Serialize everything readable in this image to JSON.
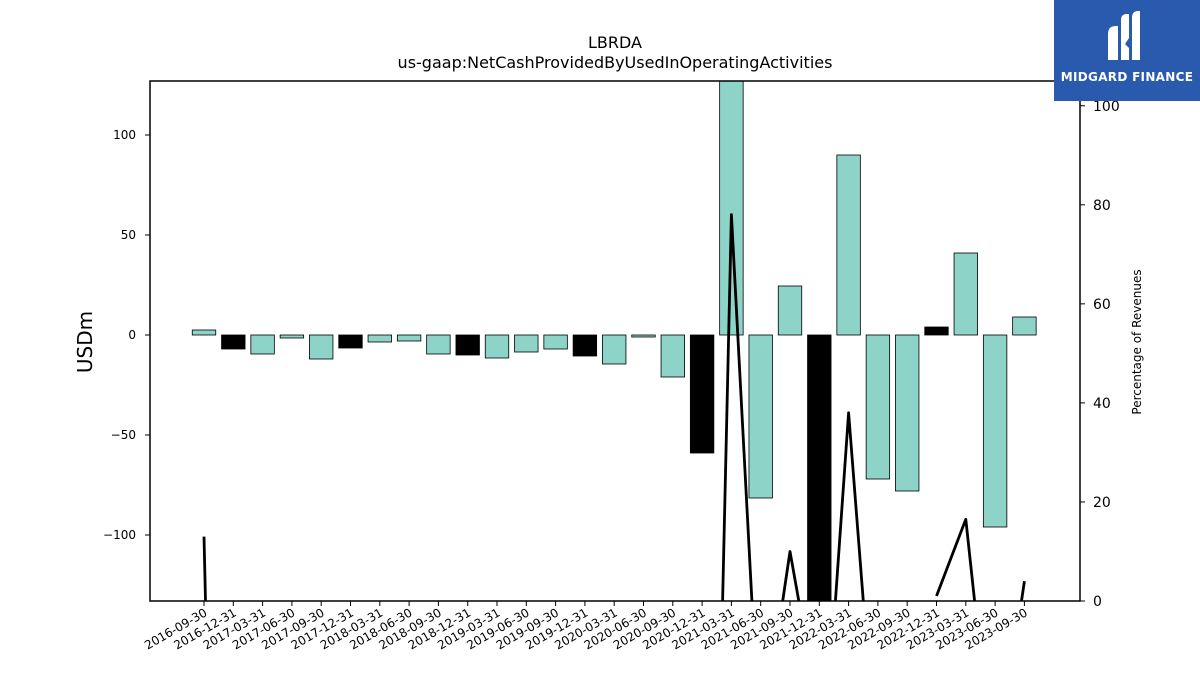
{
  "chart_data": {
    "type": "bar",
    "title": "LBRDA",
    "subtitle": "us-gaap:NetCashProvidedByUsedInOperatingActivities",
    "ylabel": "USDm",
    "y2label": "Percentage of Revenues",
    "ylim": [
      -133,
      127
    ],
    "y2lim": [
      0,
      105
    ],
    "yticks": [
      -100,
      -50,
      0,
      50,
      100
    ],
    "y2ticks": [
      0,
      20,
      40,
      60,
      80,
      100
    ],
    "categories": [
      "2016-09-30",
      "2016-12-31",
      "2017-03-31",
      "2017-06-30",
      "2017-09-30",
      "2017-12-31",
      "2018-03-31",
      "2018-06-30",
      "2018-09-30",
      "2018-12-31",
      "2019-03-31",
      "2019-06-30",
      "2019-09-30",
      "2019-12-31",
      "2020-03-31",
      "2020-06-30",
      "2020-09-30",
      "2020-12-31",
      "2021-03-31",
      "2021-06-30",
      "2021-09-30",
      "2021-12-31",
      "2022-03-31",
      "2022-06-30",
      "2022-09-30",
      "2022-12-31",
      "2023-03-31",
      "2023-06-30",
      "2023-09-30"
    ],
    "values": [
      2.5,
      -7,
      -9.5,
      -1.5,
      -12,
      -6.5,
      -3.5,
      -3,
      -9.5,
      -10,
      -11.5,
      -8.5,
      -7,
      -10.5,
      -14.5,
      -1,
      -21,
      -59,
      130,
      -81.5,
      24.5,
      -135,
      90,
      -72,
      -78,
      4,
      41,
      -96,
      9
    ],
    "bar_colors": [
      "#8dd3c7",
      "#000000",
      "#8dd3c7",
      "#8dd3c7",
      "#8dd3c7",
      "#000000",
      "#8dd3c7",
      "#8dd3c7",
      "#8dd3c7",
      "#000000",
      "#8dd3c7",
      "#8dd3c7",
      "#8dd3c7",
      "#000000",
      "#8dd3c7",
      "#8dd3c7",
      "#8dd3c7",
      "#000000",
      "#8dd3c7",
      "#8dd3c7",
      "#8dd3c7",
      "#000000",
      "#8dd3c7",
      "#8dd3c7",
      "#8dd3c7",
      "#000000",
      "#8dd3c7",
      "#8dd3c7",
      "#8dd3c7"
    ],
    "pct_segments": [
      [
        [
          0,
          13
        ],
        [
          0.05,
          0
        ]
      ],
      [
        [
          17.7,
          0
        ],
        [
          18,
          78
        ],
        [
          18.7,
          0
        ]
      ],
      [
        [
          19.75,
          0
        ],
        [
          20,
          10
        ],
        [
          20.3,
          0
        ]
      ],
      [
        [
          21.55,
          0
        ],
        [
          22,
          38
        ],
        [
          22.5,
          0
        ]
      ],
      [
        [
          25,
          1
        ],
        [
          26,
          16.5
        ],
        [
          26.3,
          0
        ]
      ],
      [
        [
          27.9,
          0
        ],
        [
          28,
          4
        ]
      ]
    ],
    "colors": {
      "positive": "#8dd3c7",
      "negative_quarter": "#000000",
      "line": "#000000"
    },
    "grid": false,
    "legend": "none"
  },
  "logo": {
    "text": "MIDGARD FINANCE",
    "bg": "#2a5aad"
  }
}
